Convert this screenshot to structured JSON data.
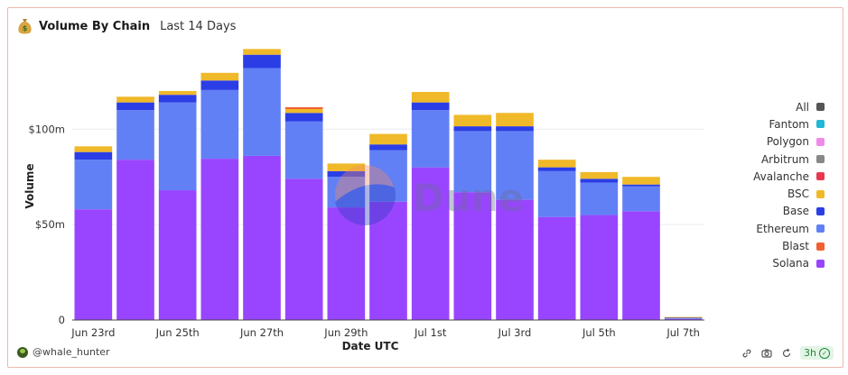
{
  "header": {
    "title": "Volume By Chain",
    "subtitle": "Last 14 Days"
  },
  "watermark": {
    "text": "Dune"
  },
  "footer": {
    "username": "@whale_hunter",
    "refresh_label": "3h"
  },
  "icons": {
    "title": "money-bag-icon",
    "avatar": "avatar",
    "footer": [
      "link-icon",
      "camera-icon",
      "refresh-icon",
      "check-circle-icon"
    ]
  },
  "chart_data": {
    "type": "bar",
    "stacked": true,
    "xlabel": "Date UTC",
    "ylabel": "Volume",
    "ylim": [
      0,
      145
    ],
    "ytick_values": [
      0,
      50,
      100
    ],
    "ytick_labels": [
      "0",
      "$50m",
      "$100m"
    ],
    "grid": true,
    "legend_position": "right",
    "categories": [
      "Jun 23rd",
      "Jun 24th",
      "Jun 25th",
      "Jun 26th",
      "Jun 27th",
      "Jun 28th",
      "Jun 29th",
      "Jun 30th",
      "Jul 1st",
      "Jul 2nd",
      "Jul 3rd",
      "Jul 4th",
      "Jul 5th",
      "Jul 6th",
      "Jul 7th"
    ],
    "xtick_labels": [
      "Jun 23rd",
      "Jun 25th",
      "Jun 27th",
      "Jun 29th",
      "Jul 1st",
      "Jul 3rd",
      "Jul 5th",
      "Jul 7th"
    ],
    "legend": [
      {
        "name": "All",
        "color": "#555555"
      },
      {
        "name": "Fantom",
        "color": "#1eb7d6"
      },
      {
        "name": "Polygon",
        "color": "#f08ae8"
      },
      {
        "name": "Arbitrum",
        "color": "#888888"
      },
      {
        "name": "Avalanche",
        "color": "#e8384f"
      },
      {
        "name": "BSC",
        "color": "#f0b929"
      },
      {
        "name": "Base",
        "color": "#2b3ee6"
      },
      {
        "name": "Ethereum",
        "color": "#6280f5"
      },
      {
        "name": "Blast",
        "color": "#f06030"
      },
      {
        "name": "Solana",
        "color": "#9945ff"
      }
    ],
    "series": [
      {
        "name": "Solana",
        "color": "#9945ff",
        "values": [
          58,
          84,
          68,
          84.5,
          86,
          74,
          59,
          62,
          80,
          67,
          63,
          54,
          55,
          57,
          0.6
        ]
      },
      {
        "name": "Ethereum",
        "color": "#6280f5",
        "values": [
          26,
          26,
          46,
          36,
          46,
          30,
          16,
          27,
          30,
          32,
          36,
          24,
          17,
          13,
          0.3
        ]
      },
      {
        "name": "Base",
        "color": "#2b3ee6",
        "values": [
          4,
          4,
          4,
          5,
          7,
          4.5,
          3,
          3,
          4,
          2.5,
          2.5,
          2,
          2,
          1,
          0.3
        ]
      },
      {
        "name": "BSC",
        "color": "#f0b929",
        "values": [
          3,
          3,
          2,
          4,
          3,
          2,
          4,
          5.5,
          5.5,
          6,
          7,
          4,
          3.5,
          4,
          0.4
        ]
      },
      {
        "name": "Blast",
        "color": "#f06030",
        "values": [
          0,
          0,
          0,
          0,
          0,
          1,
          0,
          0,
          0,
          0,
          0,
          0,
          0,
          0,
          0
        ]
      }
    ]
  }
}
